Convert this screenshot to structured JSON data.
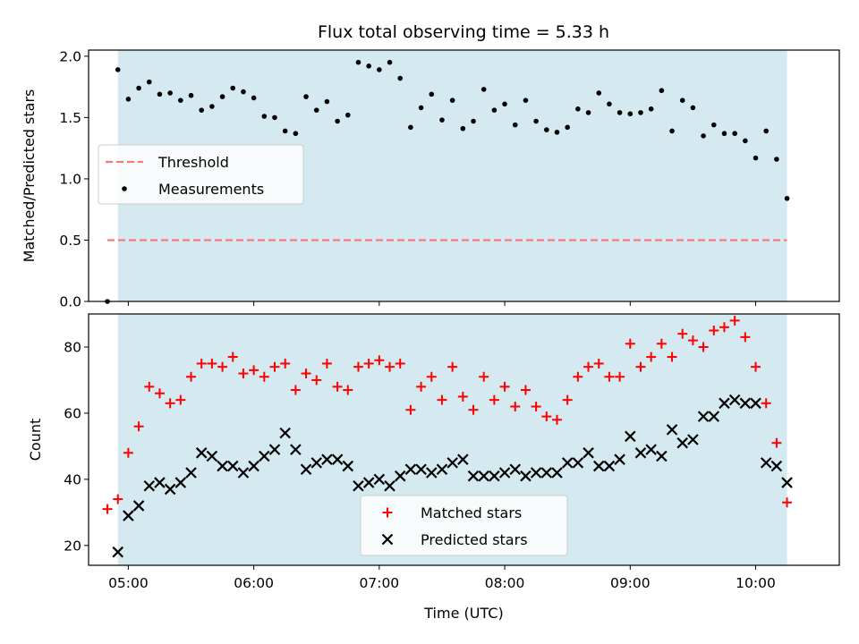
{
  "chart_data": [
    {
      "type": "scatter",
      "title": "Flux total observing time = 5.33 h",
      "xlabel": "",
      "ylabel": "Matched/Predicted stars",
      "ylim": [
        0,
        2.05
      ],
      "yticks": [
        "0.0",
        "0.5",
        "1.0",
        "1.5",
        "2.0"
      ],
      "xlim": [
        "04:41",
        "10:40"
      ],
      "shaded_span": [
        "04:55",
        "10:15"
      ],
      "shade_color": "#d4eaf0",
      "grid": false,
      "legend": {
        "placement": "center-left",
        "entries": [
          {
            "label": "Threshold",
            "marker": "dashed-line",
            "color": "#f87878"
          },
          {
            "label": "Measurements",
            "marker": "dot",
            "color": "#000000"
          }
        ]
      },
      "threshold": {
        "value": 0.5,
        "x": [
          "04:50",
          "10:15"
        ],
        "color": "#f87878"
      },
      "series": [
        {
          "name": "Measurements",
          "color": "#000000",
          "points": [
            [
              "04:50",
              0.0
            ],
            [
              "04:55",
              1.89
            ],
            [
              "05:00",
              1.65
            ],
            [
              "05:05",
              1.74
            ],
            [
              "05:10",
              1.79
            ],
            [
              "05:15",
              1.69
            ],
            [
              "05:20",
              1.7
            ],
            [
              "05:25",
              1.64
            ],
            [
              "05:30",
              1.68
            ],
            [
              "05:35",
              1.56
            ],
            [
              "05:40",
              1.59
            ],
            [
              "05:45",
              1.67
            ],
            [
              "05:50",
              1.74
            ],
            [
              "05:55",
              1.71
            ],
            [
              "06:00",
              1.66
            ],
            [
              "06:05",
              1.51
            ],
            [
              "06:10",
              1.5
            ],
            [
              "06:15",
              1.39
            ],
            [
              "06:20",
              1.37
            ],
            [
              "06:25",
              1.67
            ],
            [
              "06:30",
              1.56
            ],
            [
              "06:35",
              1.63
            ],
            [
              "06:40",
              1.47
            ],
            [
              "06:45",
              1.52
            ],
            [
              "06:50",
              1.95
            ],
            [
              "06:55",
              1.92
            ],
            [
              "07:00",
              1.89
            ],
            [
              "07:05",
              1.95
            ],
            [
              "07:10",
              1.82
            ],
            [
              "07:15",
              1.42
            ],
            [
              "07:20",
              1.58
            ],
            [
              "07:25",
              1.69
            ],
            [
              "07:30",
              1.48
            ],
            [
              "07:35",
              1.64
            ],
            [
              "07:40",
              1.41
            ],
            [
              "07:45",
              1.47
            ],
            [
              "07:50",
              1.73
            ],
            [
              "07:55",
              1.56
            ],
            [
              "08:00",
              1.61
            ],
            [
              "08:05",
              1.44
            ],
            [
              "08:10",
              1.64
            ],
            [
              "08:15",
              1.47
            ],
            [
              "08:20",
              1.4
            ],
            [
              "08:25",
              1.38
            ],
            [
              "08:30",
              1.42
            ],
            [
              "08:35",
              1.57
            ],
            [
              "08:40",
              1.54
            ],
            [
              "08:45",
              1.7
            ],
            [
              "08:50",
              1.61
            ],
            [
              "08:55",
              1.54
            ],
            [
              "09:00",
              1.53
            ],
            [
              "09:05",
              1.54
            ],
            [
              "09:10",
              1.57
            ],
            [
              "09:15",
              1.72
            ],
            [
              "09:20",
              1.39
            ],
            [
              "09:25",
              1.64
            ],
            [
              "09:30",
              1.58
            ],
            [
              "09:35",
              1.35
            ],
            [
              "09:40",
              1.44
            ],
            [
              "09:45",
              1.37
            ],
            [
              "09:50",
              1.37
            ],
            [
              "09:55",
              1.31
            ],
            [
              "10:00",
              1.17
            ],
            [
              "10:05",
              1.39
            ],
            [
              "10:10",
              1.16
            ],
            [
              "10:15",
              0.84
            ]
          ]
        }
      ]
    },
    {
      "type": "scatter",
      "title": "",
      "xlabel": "Time (UTC)",
      "ylabel": "Count",
      "ylim": [
        14,
        90
      ],
      "yticks": [
        "20",
        "40",
        "60",
        "80"
      ],
      "xticks": [
        "05:00",
        "06:00",
        "07:00",
        "08:00",
        "09:00",
        "10:00"
      ],
      "xlim": [
        "04:41",
        "10:40"
      ],
      "shaded_span": [
        "04:55",
        "10:15"
      ],
      "shade_color": "#d4eaf0",
      "grid": false,
      "legend": {
        "placement": "bottom-center",
        "entries": [
          {
            "label": "Matched stars",
            "marker": "plus",
            "color": "#ff0000"
          },
          {
            "label": "Predicted stars",
            "marker": "x",
            "color": "#000000"
          }
        ]
      },
      "series": [
        {
          "name": "Matched stars",
          "marker": "plus",
          "color": "#ff0000",
          "points": [
            [
              "04:50",
              31
            ],
            [
              "04:55",
              34
            ],
            [
              "05:00",
              48
            ],
            [
              "05:05",
              56
            ],
            [
              "05:10",
              68
            ],
            [
              "05:15",
              66
            ],
            [
              "05:20",
              63
            ],
            [
              "05:25",
              64
            ],
            [
              "05:30",
              71
            ],
            [
              "05:35",
              75
            ],
            [
              "05:40",
              75
            ],
            [
              "05:45",
              74
            ],
            [
              "05:50",
              77
            ],
            [
              "05:55",
              72
            ],
            [
              "06:00",
              73
            ],
            [
              "06:05",
              71
            ],
            [
              "06:10",
              74
            ],
            [
              "06:15",
              75
            ],
            [
              "06:20",
              67
            ],
            [
              "06:25",
              72
            ],
            [
              "06:30",
              70
            ],
            [
              "06:35",
              75
            ],
            [
              "06:40",
              68
            ],
            [
              "06:45",
              67
            ],
            [
              "06:50",
              74
            ],
            [
              "06:55",
              75
            ],
            [
              "07:00",
              76
            ],
            [
              "07:05",
              74
            ],
            [
              "07:10",
              75
            ],
            [
              "07:15",
              61
            ],
            [
              "07:20",
              68
            ],
            [
              "07:25",
              71
            ],
            [
              "07:30",
              64
            ],
            [
              "07:35",
              74
            ],
            [
              "07:40",
              65
            ],
            [
              "07:45",
              61
            ],
            [
              "07:50",
              71
            ],
            [
              "07:55",
              64
            ],
            [
              "08:00",
              68
            ],
            [
              "08:05",
              62
            ],
            [
              "08:10",
              67
            ],
            [
              "08:15",
              62
            ],
            [
              "08:20",
              59
            ],
            [
              "08:25",
              58
            ],
            [
              "08:30",
              64
            ],
            [
              "08:35",
              71
            ],
            [
              "08:40",
              74
            ],
            [
              "08:45",
              75
            ],
            [
              "08:50",
              71
            ],
            [
              "08:55",
              71
            ],
            [
              "09:00",
              81
            ],
            [
              "09:05",
              74
            ],
            [
              "09:10",
              77
            ],
            [
              "09:15",
              81
            ],
            [
              "09:20",
              77
            ],
            [
              "09:25",
              84
            ],
            [
              "09:30",
              82
            ],
            [
              "09:35",
              80
            ],
            [
              "09:40",
              85
            ],
            [
              "09:45",
              86
            ],
            [
              "09:50",
              88
            ],
            [
              "09:55",
              83
            ],
            [
              "10:00",
              74
            ],
            [
              "10:05",
              63
            ],
            [
              "10:10",
              51
            ],
            [
              "10:15",
              33
            ]
          ]
        },
        {
          "name": "Predicted stars",
          "marker": "x",
          "color": "#000000",
          "points": [
            [
              "04:55",
              18
            ],
            [
              "05:00",
              29
            ],
            [
              "05:05",
              32
            ],
            [
              "05:10",
              38
            ],
            [
              "05:15",
              39
            ],
            [
              "05:20",
              37
            ],
            [
              "05:25",
              39
            ],
            [
              "05:30",
              42
            ],
            [
              "05:35",
              48
            ],
            [
              "05:40",
              47
            ],
            [
              "05:45",
              44
            ],
            [
              "05:50",
              44
            ],
            [
              "05:55",
              42
            ],
            [
              "06:00",
              44
            ],
            [
              "06:05",
              47
            ],
            [
              "06:10",
              49
            ],
            [
              "06:15",
              54
            ],
            [
              "06:20",
              49
            ],
            [
              "06:25",
              43
            ],
            [
              "06:30",
              45
            ],
            [
              "06:35",
              46
            ],
            [
              "06:40",
              46
            ],
            [
              "06:45",
              44
            ],
            [
              "06:50",
              38
            ],
            [
              "06:55",
              39
            ],
            [
              "07:00",
              40
            ],
            [
              "07:05",
              38
            ],
            [
              "07:10",
              41
            ],
            [
              "07:15",
              43
            ],
            [
              "07:20",
              43
            ],
            [
              "07:25",
              42
            ],
            [
              "07:30",
              43
            ],
            [
              "07:35",
              45
            ],
            [
              "07:40",
              46
            ],
            [
              "07:45",
              41
            ],
            [
              "07:50",
              41
            ],
            [
              "07:55",
              41
            ],
            [
              "08:00",
              42
            ],
            [
              "08:05",
              43
            ],
            [
              "08:10",
              41
            ],
            [
              "08:15",
              42
            ],
            [
              "08:20",
              42
            ],
            [
              "08:25",
              42
            ],
            [
              "08:30",
              45
            ],
            [
              "08:35",
              45
            ],
            [
              "08:40",
              48
            ],
            [
              "08:45",
              44
            ],
            [
              "08:50",
              44
            ],
            [
              "08:55",
              46
            ],
            [
              "09:00",
              53
            ],
            [
              "09:05",
              48
            ],
            [
              "09:10",
              49
            ],
            [
              "09:15",
              47
            ],
            [
              "09:20",
              55
            ],
            [
              "09:25",
              51
            ],
            [
              "09:30",
              52
            ],
            [
              "09:35",
              59
            ],
            [
              "09:40",
              59
            ],
            [
              "09:45",
              63
            ],
            [
              "09:50",
              64
            ],
            [
              "09:55",
              63
            ],
            [
              "10:00",
              63
            ],
            [
              "10:05",
              45
            ],
            [
              "10:10",
              44
            ],
            [
              "10:15",
              39
            ]
          ]
        }
      ]
    }
  ]
}
